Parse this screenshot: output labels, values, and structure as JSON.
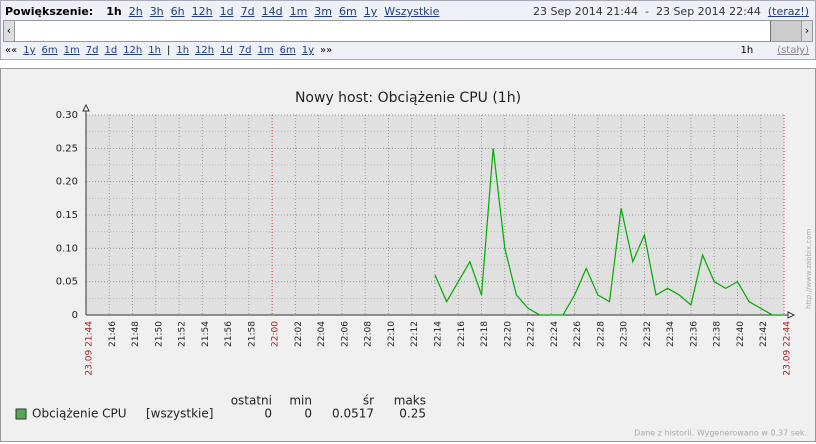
{
  "zoom": {
    "label": "Powiększenie:",
    "options": [
      "1h",
      "2h",
      "3h",
      "6h",
      "12h",
      "1d",
      "7d",
      "14d",
      "1m",
      "3m",
      "6m",
      "1y",
      "Wszystkie"
    ]
  },
  "period": {
    "from": "23 Sep 2014 21:44",
    "sep": "-",
    "to": "23 Sep 2014 22:44",
    "now": "(teraz!)"
  },
  "nav": {
    "back": "««",
    "left": [
      "1y",
      "6m",
      "1m",
      "7d",
      "1d",
      "12h",
      "1h"
    ],
    "sep": "|",
    "right": [
      "1h",
      "12h",
      "1d",
      "7d",
      "1m",
      "6m",
      "1y"
    ],
    "forward": "»»",
    "period": "1h",
    "fixed": "(stały)"
  },
  "chart_data": {
    "type": "line",
    "title": "Nowy host: Obciążenie CPU (1h)",
    "x": [
      "22:14",
      "22:15",
      "22:16",
      "22:17",
      "22:18",
      "22:19",
      "22:20",
      "22:21",
      "22:22",
      "22:23",
      "22:24",
      "22:25",
      "22:26",
      "22:27",
      "22:28",
      "22:29",
      "22:30",
      "22:31",
      "22:32",
      "22:33",
      "22:34",
      "22:35",
      "22:36",
      "22:37",
      "22:38",
      "22:39",
      "22:40",
      "22:41",
      "22:42",
      "22:43",
      "22:44"
    ],
    "series": [
      {
        "name": "Obciążenie CPU",
        "color": "#00aa00",
        "function": "[wszystkie]",
        "values": [
          0.06,
          0.02,
          0.05,
          0.08,
          0.03,
          0.25,
          0.1,
          0.03,
          0.01,
          0,
          0,
          0,
          0.03,
          0.07,
          0.03,
          0.02,
          0.16,
          0.08,
          0.12,
          0.03,
          0.04,
          0.03,
          0.015,
          0.09,
          0.05,
          0.04,
          0.05,
          0.02,
          0.01,
          0,
          0
        ],
        "stats": [
          0,
          0,
          0.0517,
          0.25
        ]
      }
    ],
    "stat_headers": [
      "ostatni",
      "min",
      "śr",
      "maks"
    ],
    "xlim": [
      "21:44",
      "22:44"
    ],
    "xticks": [
      {
        "value": "21:44",
        "label": "23.09 21:44"
      },
      "21:46",
      "21:48",
      "21:50",
      "21:52",
      "21:54",
      "21:56",
      "21:58",
      "22:00",
      "22:02",
      "22:04",
      "22:06",
      "22:08",
      "22:10",
      "22:12",
      "22:14",
      "22:16",
      "22:18",
      "22:20",
      "22:22",
      "22:24",
      "22:26",
      "22:28",
      "22:30",
      "22:32",
      "22:34",
      "22:36",
      "22:38",
      "22:40",
      "22:42",
      {
        "value": "22:44",
        "label": "23.09 22:44"
      }
    ],
    "ylim": [
      0,
      0.3
    ],
    "yticks": [
      0,
      0.05,
      {
        "value": 0.1,
        "label": "0.10"
      },
      0.15,
      {
        "value": 0.2,
        "label": "0.20"
      },
      0.25,
      {
        "value": 0.3,
        "label": "0.30"
      }
    ],
    "grid": true,
    "footer": "Dane z historii. Wygenerowano w 0.37 sek.",
    "credit": "http://www.zabbix.com"
  }
}
